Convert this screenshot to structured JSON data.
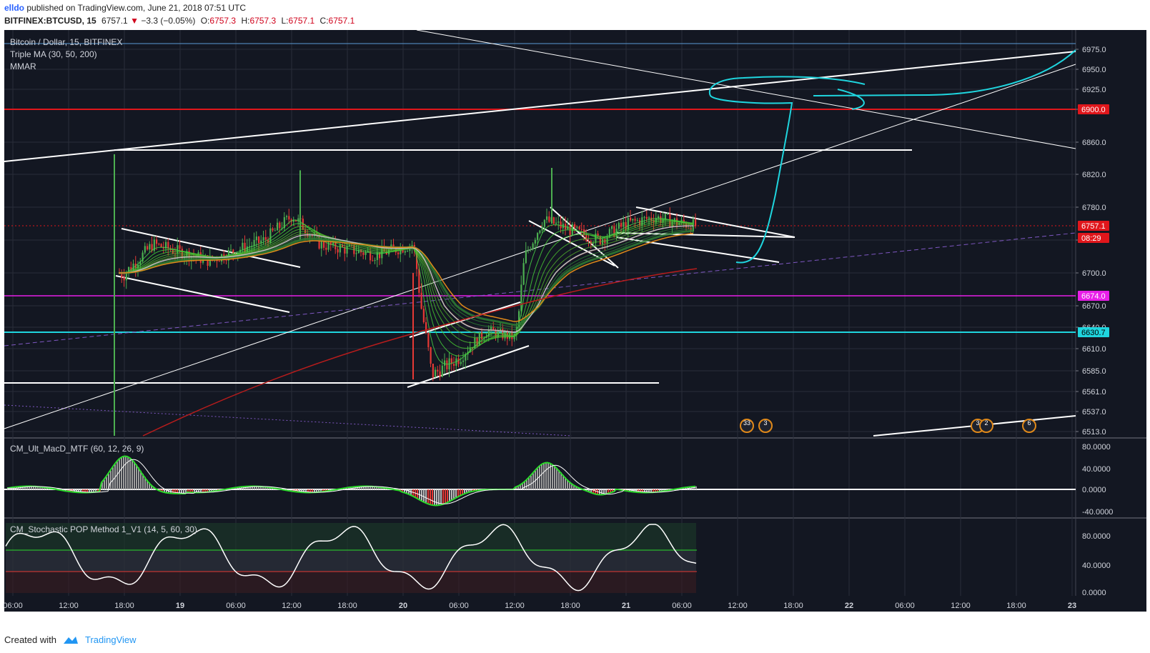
{
  "header": {
    "user": "elldo",
    "published_text": "published on TradingView.com, June 21, 2018 07:51 UTC",
    "symbol": "BITFINEX:BTCUSD, 15",
    "last": "6757.1",
    "change": "−3.3 (−0.05%)",
    "o_label": "O:",
    "o_value": "6757.3",
    "h_label": "H:",
    "h_value": "6757.3",
    "l_label": "L:",
    "l_value": "6757.1",
    "c_label": "C:",
    "c_value": "6757.1"
  },
  "legend": {
    "main_title": "Bitcoin / Dollar, 15, BITFINEX",
    "ind1": "Triple MA (30, 50, 200)",
    "ind2": "MMAR",
    "macd_title": "CM_Ult_MacD_MTF (60, 12, 26, 9)",
    "stoch_title": "CM_Stochastic POP Method 1_V1 (14, 5, 60, 30)"
  },
  "price_axis": {
    "ticks": [
      "6975.0",
      "6950.0",
      "6925.0",
      "6900.0",
      "6860.0",
      "6820.0",
      "6780.0",
      "6740.0",
      "6700.0",
      "6670.0",
      "6640.0",
      "6610.0",
      "6585.0",
      "6561.0",
      "6537.0",
      "6513.0"
    ],
    "markers": [
      {
        "text": "6900.0",
        "color": "#e0161b"
      },
      {
        "text": "6757.1",
        "color": "#e0161b"
      },
      {
        "text": "08:29",
        "color": "#e0161b"
      },
      {
        "text": "6674.0",
        "color": "#e81ee8"
      },
      {
        "text": "6630.7",
        "color": "#1fd5de"
      }
    ]
  },
  "macd_axis": {
    "ticks": [
      "80.0000",
      "40.0000",
      "0.0000",
      "-40.0000"
    ]
  },
  "stoch_axis": {
    "ticks": [
      "80.0000",
      "40.0000",
      "0.0000"
    ]
  },
  "time_axis": {
    "ticks": [
      "06:00",
      "12:00",
      "18:00",
      "19",
      "06:00",
      "12:00",
      "18:00",
      "20",
      "06:00",
      "12:00",
      "18:00",
      "21",
      "06:00",
      "12:00",
      "18:00",
      "22",
      "06:00",
      "12:00",
      "18:00",
      "23"
    ]
  },
  "events": [
    {
      "text": "33"
    },
    {
      "text": "3"
    },
    {
      "text": "3"
    },
    {
      "text": "2"
    },
    {
      "text": "6"
    }
  ],
  "colors": {
    "background": "#131722",
    "grid": "#2a2e39",
    "up": "#4caf50",
    "down": "#e53935",
    "red_line": "#e0161b",
    "magenta_line": "#e81ee8",
    "cyan_line": "#1fd5de",
    "ma_orange": "#e0891a",
    "ma_red": "#b71c1c"
  },
  "chart_data": {
    "type": "line",
    "title": "Bitcoin / Dollar, 15, BITFINEX",
    "last_price": 6757.1,
    "horizontal_levels": [
      6900.0,
      6674.0,
      6630.7
    ],
    "price_path": {
      "x": [
        "18 18:00",
        "18 21:00",
        "19 03:00",
        "19 09:00",
        "19 12:00",
        "19 15:00",
        "19 21:00",
        "20 01:00",
        "20 03:00",
        "20 06:00",
        "20 09:00",
        "20 12:00",
        "20 13:00",
        "20 15:00",
        "20 18:00",
        "20 21:00",
        "21 00:00",
        "21 03:00",
        "21 06:00",
        "21 07:30"
      ],
      "y": [
        6700,
        6735,
        6715,
        6740,
        6770,
        6735,
        6722,
        6735,
        6580,
        6600,
        6635,
        6625,
        6720,
        6765,
        6752,
        6740,
        6760,
        6768,
        6760,
        6757
      ]
    },
    "macd": {
      "range": [
        -40,
        80
      ]
    },
    "stochastic": {
      "range": [
        0,
        100
      ],
      "bands": [
        30,
        60
      ]
    }
  }
}
